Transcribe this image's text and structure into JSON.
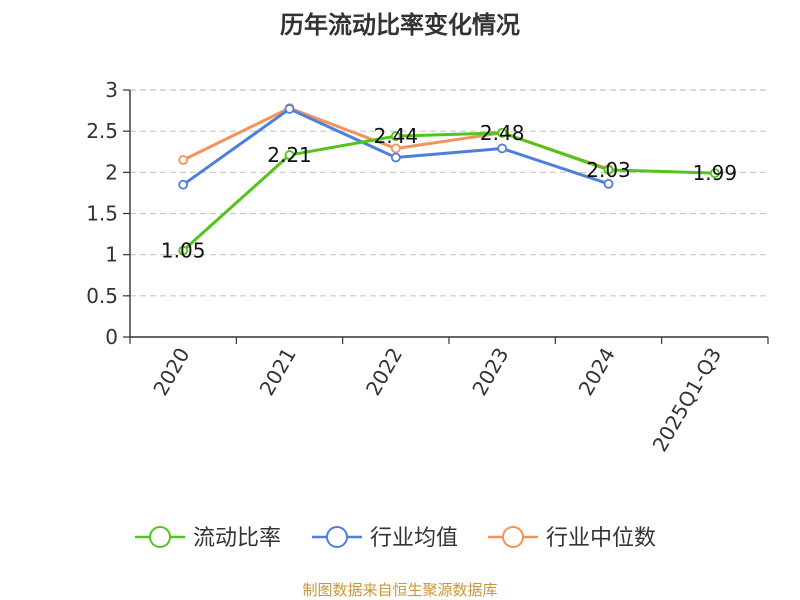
{
  "chart_data": {
    "type": "line",
    "title": "历年流动比率变化情况",
    "categories": [
      "2020",
      "2021",
      "2022",
      "2023",
      "2024",
      "2025Q1-Q3"
    ],
    "series": [
      {
        "name": "流动比率",
        "color": "#52c41a",
        "values": [
          1.05,
          2.21,
          2.44,
          2.48,
          2.03,
          1.99
        ],
        "show_labels": true
      },
      {
        "name": "行业均值",
        "color": "#4f7fda",
        "values": [
          1.85,
          2.77,
          2.18,
          2.29,
          1.86,
          null
        ],
        "show_labels": false
      },
      {
        "name": "行业中位数",
        "color": "#f4925c",
        "values": [
          2.15,
          2.78,
          2.29,
          2.48,
          2.04,
          null
        ],
        "show_labels": false
      }
    ],
    "ylim": [
      0,
      3
    ],
    "yticks": [
      "0",
      "0.5",
      "1",
      "1.5",
      "2",
      "2.5",
      "3"
    ],
    "grid": "horizontal-dashed",
    "legend_position": "bottom"
  },
  "footer": {
    "source": "制图数据来自恒生聚源数据库"
  }
}
